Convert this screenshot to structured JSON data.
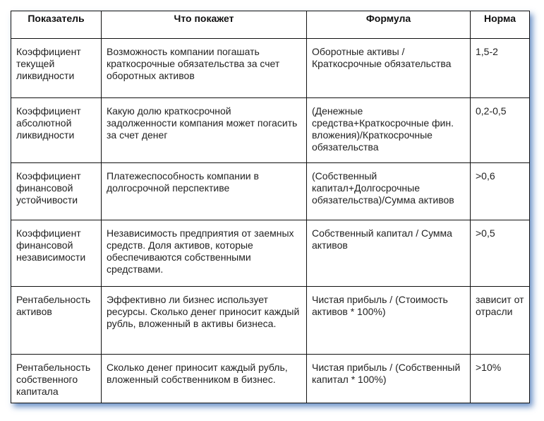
{
  "headers": [
    "Показатель",
    "Что покажет",
    "Формула",
    "Норма"
  ],
  "rows": [
    {
      "name": "Коэффициент текущей ликвидности",
      "what": "Возможность компании погашать краткосрочные обязательства за счет оборотных активов",
      "formula": "Оборотные активы / Краткосрочные обязательства",
      "norm": "1,5-2"
    },
    {
      "name": "Коэффициент абсолютной ликвидности",
      "what": "Какую долю краткосрочной задолженности компания может погасить за счет денег",
      "formula": "(Денежные средства+Краткосрочные фин. вложения)/Краткосрочные обязательства",
      "norm": "0,2-0,5"
    },
    {
      "name": "Коэффициент финансовой устойчивости",
      "what": "Платежеспособность компании в долгосрочной перспективе",
      "formula": "(Собственный капитал+Долгосрочные обязательства)/Сумма активов",
      "norm": ">0,6"
    },
    {
      "name": "Коэффициент финансовой независимости",
      "what": "Независимость предприятия от заемных средств. Доля активов, которые обеспечиваются собственными средствами.",
      "formula": "Собственный капитал / Сумма активов",
      "norm": ">0,5"
    },
    {
      "name": "Рентабельность активов",
      "what": "Эффективно ли бизнес использует ресурсы. Сколько денег приносит каждый рубль, вложенный в активы бизнеса.",
      "formula": "Чистая прибыль / (Стоимость активов * 100%)",
      "norm": "зависит от отрасли"
    },
    {
      "name": "Рентабельность собственного капитала",
      "what": "Сколько денег приносит каждый рубль, вложенный собственником в бизнес.",
      "formula": "Чистая прибыль / (Собственный капитал * 100%)",
      "norm": ">10%"
    }
  ]
}
